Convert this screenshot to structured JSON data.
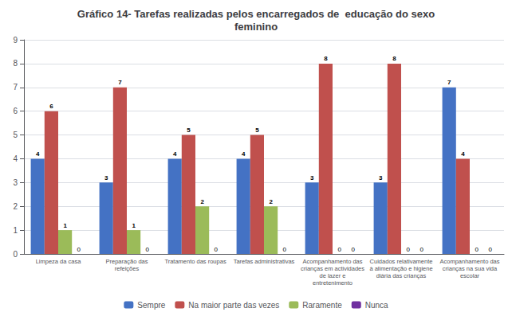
{
  "chart_data": {
    "type": "bar",
    "title": "Gráfico 14- Tarefas realizadas pelos encarregados de  educação do sexo\nfeminino",
    "categories": [
      "Limpeza da casa",
      "Preparação das\nrefeições",
      "Tratamento das roupas",
      "Tarefas administrativas",
      "Acompanhamento das\ncrianças em actividades\nde lazer e\nentretenimento",
      "Cuidados relativamente\nà alimentação e higiene\ndiária das crianças",
      "Acompanhamento das\ncrianças na sua vida\nescolar"
    ],
    "series": [
      {
        "name": "Sempre",
        "color": "#4472C4",
        "values": [
          4,
          3,
          4,
          4,
          3,
          3,
          7
        ]
      },
      {
        "name": "Na maior parte das vezes",
        "color": "#C0504D",
        "values": [
          6,
          7,
          5,
          5,
          8,
          8,
          4
        ]
      },
      {
        "name": "Raramente",
        "color": "#9BBB59",
        "values": [
          1,
          1,
          2,
          2,
          0,
          0,
          0
        ]
      },
      {
        "name": "Nunca",
        "color": "#7030A0",
        "values": [
          0,
          0,
          0,
          0,
          0,
          0,
          0
        ]
      }
    ],
    "ylim": [
      0,
      9
    ],
    "yticks": [
      0,
      1,
      2,
      3,
      4,
      5,
      6,
      7,
      8,
      9
    ],
    "grid": true,
    "legend": "bottom",
    "data_labels": true
  }
}
